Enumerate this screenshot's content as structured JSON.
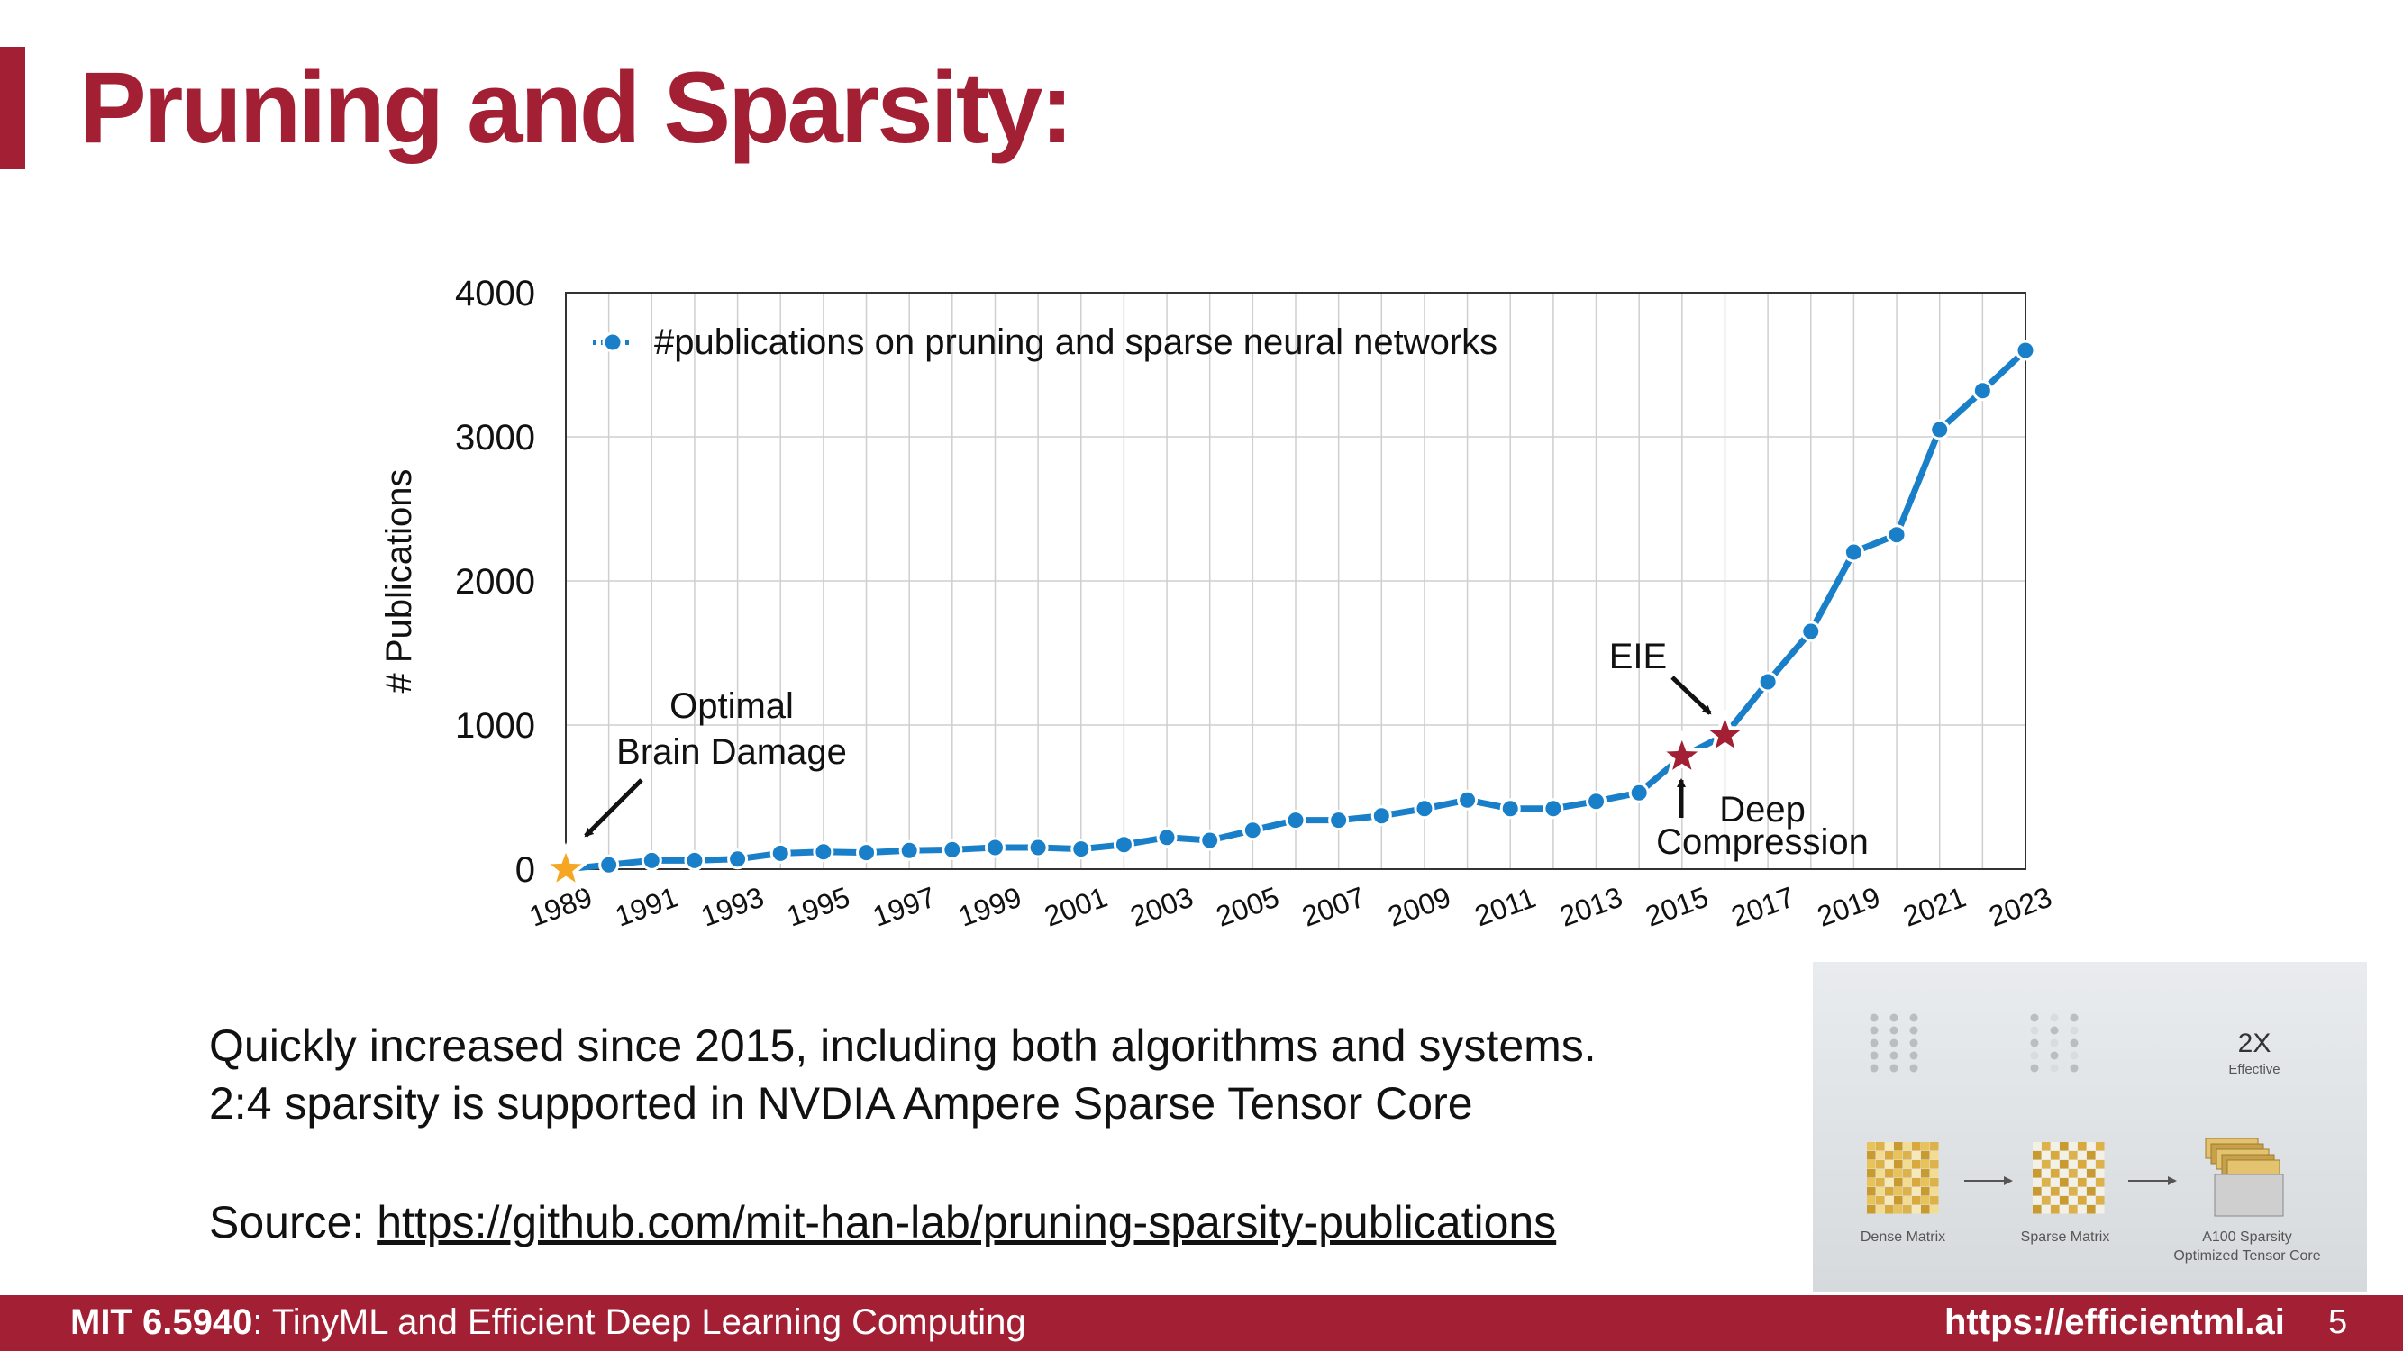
{
  "slide": {
    "title": "Pruning and Sparsity:",
    "body_lines": [
      "Quickly increased since 2015, including both algorithms and systems.",
      "2:4 sparsity is supported in NVDIA Ampere Sparse Tensor Core"
    ],
    "source_prefix": "Source: ",
    "source_link": "https://github.com/mit-han-lab/pruning-sparsity-publications"
  },
  "chart_data": {
    "type": "line",
    "title": "",
    "xlabel": "",
    "ylabel": "# Publications",
    "ylim": [
      0,
      4000
    ],
    "yticks": [
      0,
      1000,
      2000,
      3000,
      4000
    ],
    "xticks": [
      "1989",
      "1991",
      "1993",
      "1995",
      "1997",
      "1999",
      "2001",
      "2003",
      "2005",
      "2007",
      "2009",
      "2011",
      "2013",
      "2015",
      "2017",
      "2019",
      "2021",
      "2023"
    ],
    "x": [
      1989,
      1990,
      1991,
      1992,
      1993,
      1994,
      1995,
      1996,
      1997,
      1998,
      1999,
      2000,
      2001,
      2002,
      2003,
      2004,
      2005,
      2006,
      2007,
      2008,
      2009,
      2010,
      2011,
      2012,
      2013,
      2014,
      2015,
      2016,
      2017,
      2018,
      2019,
      2020,
      2021,
      2022,
      2023
    ],
    "series": [
      {
        "name": "#publications on pruning and sparse neural networks",
        "color": "#1a7fc9",
        "values": [
          0,
          30,
          60,
          60,
          70,
          110,
          120,
          115,
          130,
          135,
          150,
          150,
          140,
          170,
          220,
          200,
          270,
          340,
          340,
          370,
          420,
          480,
          420,
          420,
          470,
          530,
          780,
          930,
          1300,
          1650,
          2200,
          2320,
          3050,
          3320,
          3600
        ]
      }
    ],
    "grid": true,
    "legend_position": "top-left",
    "annotations": [
      {
        "id": "obd",
        "lines": [
          "Optimal",
          "Brain Damage"
        ],
        "x": 1989,
        "marker_color": "#f5a623"
      },
      {
        "id": "eie",
        "lines": [
          "EIE"
        ],
        "x": 2016,
        "marker_color": "#a31f34"
      },
      {
        "id": "dc",
        "lines": [
          "Deep",
          "Compression"
        ],
        "x": 2015,
        "marker_color": "#a31f34"
      }
    ]
  },
  "figure": {
    "top_label": "2X",
    "top_sublabel": "Effective",
    "captions": [
      "Dense Matrix",
      "Sparse Matrix",
      "A100 Sparsity",
      "Optimized Tensor Core"
    ]
  },
  "footer": {
    "course": "MIT 6.5940",
    "course_rest": ": TinyML and Efficient Deep Learning Computing",
    "url": "https://efficientml.ai",
    "page": "5"
  }
}
